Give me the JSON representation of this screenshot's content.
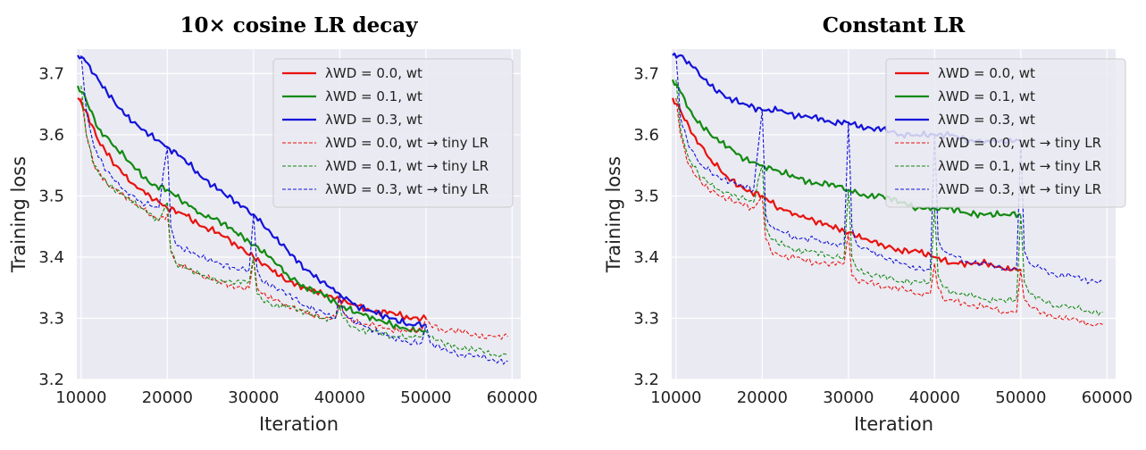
{
  "chart_data": [
    {
      "type": "line",
      "title": "10× cosine LR decay",
      "xlabel": "Iteration",
      "ylabel": "Training loss",
      "xlim": [
        9500,
        61000
      ],
      "ylim": [
        3.2,
        3.74
      ],
      "xticks": [
        "10000",
        "20000",
        "30000",
        "40000",
        "50000",
        "60000"
      ],
      "yticks": [
        "3.2",
        "3.3",
        "3.4",
        "3.5",
        "3.6",
        "3.7"
      ],
      "grid": true,
      "legend_position": "top-right",
      "series": [
        {
          "name": "λWD = 0.0, wt",
          "color": "#e8130e",
          "style": "solid",
          "x": [
            9600,
            10500,
            12000,
            14000,
            16000,
            18000,
            20000,
            22000,
            24000,
            26000,
            28000,
            30000,
            32000,
            34000,
            36000,
            38000,
            40000,
            42000,
            44000,
            46000,
            48000,
            50000
          ],
          "y": [
            3.66,
            3.64,
            3.59,
            3.55,
            3.52,
            3.5,
            3.48,
            3.47,
            3.45,
            3.44,
            3.42,
            3.4,
            3.38,
            3.36,
            3.35,
            3.34,
            3.33,
            3.32,
            3.31,
            3.31,
            3.3,
            3.3
          ]
        },
        {
          "name": "λWD = 0.1, wt",
          "color": "#128a12",
          "style": "solid",
          "x": [
            9600,
            10500,
            12000,
            14000,
            16000,
            18000,
            20000,
            22000,
            24000,
            26000,
            28000,
            30000,
            32000,
            34000,
            36000,
            38000,
            40000,
            42000,
            44000,
            46000,
            48000,
            50000
          ],
          "y": [
            3.68,
            3.66,
            3.61,
            3.58,
            3.55,
            3.52,
            3.51,
            3.49,
            3.47,
            3.46,
            3.44,
            3.42,
            3.4,
            3.37,
            3.35,
            3.34,
            3.32,
            3.31,
            3.3,
            3.29,
            3.28,
            3.28
          ]
        },
        {
          "name": "λWD = 0.3, wt",
          "color": "#1313d9",
          "style": "solid",
          "x": [
            9600,
            10500,
            12000,
            14000,
            16000,
            18000,
            20000,
            22000,
            24000,
            26000,
            28000,
            30000,
            32000,
            34000,
            36000,
            38000,
            40000,
            42000,
            44000,
            46000,
            48000,
            50000
          ],
          "y": [
            3.73,
            3.72,
            3.69,
            3.65,
            3.62,
            3.6,
            3.58,
            3.56,
            3.53,
            3.51,
            3.49,
            3.47,
            3.44,
            3.41,
            3.38,
            3.36,
            3.34,
            3.32,
            3.31,
            3.3,
            3.29,
            3.29
          ]
        },
        {
          "name": "λWD = 0.0, wt → tiny LR",
          "color": "#e8130e",
          "style": "dashed",
          "x": [
            10000,
            10600,
            11500,
            13000,
            15000,
            17000,
            19000,
            20000,
            20400,
            21000,
            22500,
            24000,
            26000,
            28000,
            29500,
            30000,
            30400,
            31000,
            32500,
            34000,
            36000,
            38000,
            39500,
            40000,
            40400,
            41000,
            42500,
            44000,
            46000,
            48000,
            49500,
            50000,
            50500,
            52000,
            54000,
            56000,
            58000,
            59500
          ],
          "y": [
            3.66,
            3.6,
            3.55,
            3.52,
            3.5,
            3.48,
            3.46,
            3.47,
            3.41,
            3.39,
            3.38,
            3.37,
            3.36,
            3.35,
            3.35,
            3.4,
            3.35,
            3.34,
            3.33,
            3.32,
            3.31,
            3.3,
            3.3,
            3.33,
            3.31,
            3.3,
            3.29,
            3.29,
            3.28,
            3.28,
            3.28,
            3.3,
            3.29,
            3.28,
            3.28,
            3.27,
            3.27,
            3.27
          ]
        },
        {
          "name": "λWD = 0.1, wt → tiny LR",
          "color": "#128a12",
          "style": "dashed",
          "x": [
            10000,
            10600,
            11500,
            13000,
            15000,
            17000,
            19000,
            20000,
            20400,
            21000,
            22500,
            24000,
            26000,
            28000,
            29500,
            30000,
            30400,
            31000,
            32500,
            34000,
            36000,
            38000,
            39500,
            40000,
            40400,
            41000,
            42500,
            44000,
            46000,
            48000,
            49500,
            50000,
            50500,
            52000,
            54000,
            56000,
            58000,
            59500
          ],
          "y": [
            3.68,
            3.6,
            3.55,
            3.52,
            3.5,
            3.48,
            3.46,
            3.49,
            3.41,
            3.39,
            3.38,
            3.37,
            3.36,
            3.36,
            3.36,
            3.4,
            3.34,
            3.33,
            3.32,
            3.32,
            3.31,
            3.3,
            3.3,
            3.32,
            3.3,
            3.29,
            3.28,
            3.28,
            3.27,
            3.27,
            3.27,
            3.28,
            3.27,
            3.26,
            3.25,
            3.25,
            3.24,
            3.24
          ]
        },
        {
          "name": "λWD = 0.3, wt → tiny LR",
          "color": "#1313d9",
          "style": "dashed",
          "x": [
            10000,
            10600,
            11500,
            13000,
            15000,
            17000,
            19000,
            20000,
            20400,
            21000,
            22500,
            24000,
            26000,
            28000,
            29500,
            30000,
            30400,
            31000,
            32500,
            34000,
            36000,
            38000,
            39500,
            40000,
            40400,
            41000,
            42500,
            44000,
            46000,
            48000,
            49500,
            50000,
            50500,
            52000,
            54000,
            56000,
            58000,
            59500
          ],
          "y": [
            3.73,
            3.64,
            3.58,
            3.54,
            3.51,
            3.49,
            3.48,
            3.58,
            3.45,
            3.42,
            3.41,
            3.4,
            3.39,
            3.38,
            3.38,
            3.47,
            3.38,
            3.36,
            3.35,
            3.34,
            3.32,
            3.31,
            3.3,
            3.34,
            3.31,
            3.3,
            3.29,
            3.28,
            3.27,
            3.26,
            3.26,
            3.29,
            3.26,
            3.25,
            3.24,
            3.24,
            3.23,
            3.23
          ]
        }
      ]
    },
    {
      "type": "line",
      "title": "Constant LR",
      "xlabel": "Iteration",
      "ylabel": "Training loss",
      "xlim": [
        9500,
        61000
      ],
      "ylim": [
        3.2,
        3.74
      ],
      "xticks": [
        "10000",
        "20000",
        "30000",
        "40000",
        "50000",
        "60000"
      ],
      "yticks": [
        "3.2",
        "3.3",
        "3.4",
        "3.5",
        "3.6",
        "3.7"
      ],
      "grid": true,
      "legend_position": "top-right",
      "series": [
        {
          "name": "λWD = 0.0, wt",
          "color": "#e8130e",
          "style": "solid",
          "x": [
            9600,
            10500,
            12000,
            14000,
            16000,
            18000,
            20000,
            22000,
            24000,
            26000,
            28000,
            30000,
            32000,
            34000,
            36000,
            38000,
            40000,
            42000,
            44000,
            46000,
            48000,
            50000
          ],
          "y": [
            3.66,
            3.64,
            3.6,
            3.56,
            3.53,
            3.51,
            3.5,
            3.48,
            3.47,
            3.46,
            3.45,
            3.44,
            3.43,
            3.42,
            3.41,
            3.41,
            3.4,
            3.39,
            3.39,
            3.39,
            3.38,
            3.38
          ]
        },
        {
          "name": "λWD = 0.1, wt",
          "color": "#128a12",
          "style": "solid",
          "x": [
            9600,
            10500,
            12000,
            14000,
            16000,
            18000,
            20000,
            22000,
            24000,
            26000,
            28000,
            30000,
            32000,
            34000,
            36000,
            38000,
            40000,
            42000,
            44000,
            46000,
            48000,
            50000
          ],
          "y": [
            3.69,
            3.67,
            3.63,
            3.6,
            3.58,
            3.56,
            3.55,
            3.54,
            3.53,
            3.52,
            3.52,
            3.51,
            3.5,
            3.5,
            3.49,
            3.48,
            3.48,
            3.48,
            3.47,
            3.47,
            3.47,
            3.47
          ]
        },
        {
          "name": "λWD = 0.3, wt",
          "color": "#1313d9",
          "style": "solid",
          "x": [
            9600,
            10500,
            12000,
            14000,
            16000,
            18000,
            20000,
            22000,
            24000,
            26000,
            28000,
            30000,
            32000,
            34000,
            36000,
            38000,
            40000,
            42000,
            44000,
            46000,
            48000,
            50000
          ],
          "y": [
            3.73,
            3.73,
            3.71,
            3.68,
            3.66,
            3.65,
            3.64,
            3.64,
            3.63,
            3.63,
            3.62,
            3.62,
            3.61,
            3.61,
            3.6,
            3.6,
            3.6,
            3.6,
            3.59,
            3.59,
            3.59,
            3.59
          ]
        },
        {
          "name": "λWD = 0.0, wt → tiny LR",
          "color": "#e8130e",
          "style": "dashed",
          "x": [
            10000,
            10500,
            11500,
            13000,
            15000,
            17000,
            19000,
            20000,
            20400,
            21000,
            22500,
            24000,
            26000,
            28000,
            29500,
            30000,
            30400,
            31000,
            32500,
            34000,
            36000,
            38000,
            39500,
            40000,
            40400,
            41000,
            42500,
            44000,
            46000,
            48000,
            49500,
            50000,
            50400,
            51000,
            52500,
            54000,
            56000,
            58000,
            59500
          ],
          "y": [
            3.66,
            3.6,
            3.55,
            3.52,
            3.5,
            3.49,
            3.48,
            3.5,
            3.43,
            3.41,
            3.4,
            3.4,
            3.39,
            3.39,
            3.39,
            3.44,
            3.37,
            3.36,
            3.36,
            3.35,
            3.35,
            3.34,
            3.34,
            3.39,
            3.35,
            3.33,
            3.33,
            3.32,
            3.32,
            3.31,
            3.31,
            3.38,
            3.33,
            3.32,
            3.31,
            3.3,
            3.3,
            3.29,
            3.29
          ]
        },
        {
          "name": "λWD = 0.1, wt → tiny LR",
          "color": "#128a12",
          "style": "dashed",
          "x": [
            10000,
            10500,
            11500,
            13000,
            15000,
            17000,
            19000,
            20000,
            20400,
            21000,
            22500,
            24000,
            26000,
            28000,
            29500,
            30000,
            30400,
            31000,
            32500,
            34000,
            36000,
            38000,
            39500,
            40000,
            40400,
            41000,
            42500,
            44000,
            46000,
            48000,
            49500,
            50000,
            50400,
            51000,
            52500,
            54000,
            56000,
            58000,
            59500
          ],
          "y": [
            3.69,
            3.61,
            3.56,
            3.53,
            3.51,
            3.5,
            3.49,
            3.55,
            3.45,
            3.43,
            3.42,
            3.41,
            3.41,
            3.4,
            3.4,
            3.51,
            3.4,
            3.38,
            3.37,
            3.37,
            3.36,
            3.36,
            3.36,
            3.48,
            3.37,
            3.35,
            3.34,
            3.34,
            3.33,
            3.33,
            3.33,
            3.47,
            3.36,
            3.34,
            3.33,
            3.32,
            3.32,
            3.31,
            3.31
          ]
        },
        {
          "name": "λWD = 0.3, wt → tiny LR",
          "color": "#1313d9",
          "style": "dashed",
          "x": [
            10000,
            10500,
            11500,
            13000,
            15000,
            17000,
            19000,
            20000,
            20400,
            21000,
            22500,
            24000,
            26000,
            28000,
            29500,
            30000,
            30400,
            31000,
            32500,
            34000,
            36000,
            38000,
            39500,
            40000,
            40400,
            41000,
            42500,
            44000,
            46000,
            48000,
            49500,
            50000,
            50400,
            51000,
            52500,
            54000,
            56000,
            58000,
            59500
          ],
          "y": [
            3.73,
            3.63,
            3.58,
            3.55,
            3.53,
            3.52,
            3.51,
            3.64,
            3.47,
            3.45,
            3.44,
            3.43,
            3.43,
            3.42,
            3.42,
            3.62,
            3.45,
            3.42,
            3.41,
            3.4,
            3.39,
            3.38,
            3.38,
            3.6,
            3.43,
            3.41,
            3.4,
            3.39,
            3.39,
            3.38,
            3.38,
            3.59,
            3.41,
            3.39,
            3.38,
            3.37,
            3.37,
            3.36,
            3.36
          ]
        }
      ]
    }
  ]
}
